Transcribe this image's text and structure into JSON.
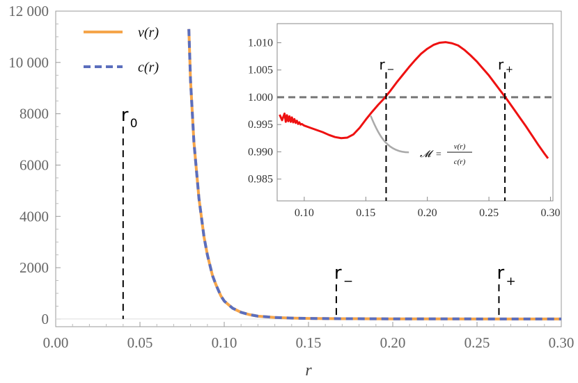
{
  "chart_data": [
    {
      "type": "line",
      "title": "",
      "xlabel": "r",
      "ylabel": "",
      "xlim": [
        0.0,
        0.3
      ],
      "ylim": [
        -300,
        12000
      ],
      "xticks": [
        "0.00",
        "0.05",
        "0.10",
        "0.15",
        "0.20",
        "0.25",
        "0.30"
      ],
      "yticks": [
        "0",
        "2000",
        "4000",
        "6000",
        "8000",
        "10 000",
        "12 000"
      ],
      "grid": false,
      "legend_position": "top-left",
      "series": [
        {
          "name": "v(r)",
          "color": "#f5a54a",
          "style": "solid",
          "x": [
            0.079,
            0.08,
            0.082,
            0.085,
            0.088,
            0.09,
            0.093,
            0.095,
            0.098,
            0.1,
            0.105,
            0.11,
            0.115,
            0.12,
            0.13,
            0.14,
            0.15,
            0.17,
            0.2,
            0.25,
            0.3
          ],
          "y": [
            11300,
            9300,
            6900,
            4700,
            3200,
            2500,
            1700,
            1350,
            900,
            700,
            420,
            260,
            170,
            110,
            60,
            35,
            22,
            12,
            6,
            3,
            2
          ]
        },
        {
          "name": "c(r)",
          "color": "#5b6ebd",
          "style": "dashed",
          "x": [
            0.079,
            0.08,
            0.082,
            0.085,
            0.088,
            0.09,
            0.093,
            0.095,
            0.098,
            0.1,
            0.105,
            0.11,
            0.115,
            0.12,
            0.13,
            0.14,
            0.15,
            0.17,
            0.2,
            0.25,
            0.3
          ],
          "y": [
            11300,
            9300,
            6900,
            4700,
            3200,
            2500,
            1700,
            1350,
            900,
            700,
            420,
            260,
            170,
            110,
            60,
            35,
            22,
            12,
            6,
            3,
            2
          ]
        }
      ],
      "markers": [
        {
          "label": "r",
          "sub": "0",
          "x": 0.04,
          "ytop": 7500
        },
        {
          "label": "r",
          "sub": "−",
          "x": 0.1665,
          "ytop": 1350
        },
        {
          "label": "r",
          "sub": "+",
          "x": 0.263,
          "ytop": 1350
        }
      ]
    },
    {
      "type": "line",
      "title": "",
      "xlabel": "",
      "ylabel": "",
      "xlim": [
        0.078,
        0.302
      ],
      "ylim": [
        0.981,
        1.0135
      ],
      "xticks": [
        "0.10",
        "0.15",
        "0.20",
        "0.25",
        "0.30"
      ],
      "yticks": [
        "0.985",
        "0.990",
        "0.995",
        "1.000",
        "1.005",
        "1.010"
      ],
      "reference_line": {
        "y": 1.0,
        "color": "#777777",
        "style": "dashed"
      },
      "series": [
        {
          "name": "",
          "color": "#ee1111",
          "style": "solid",
          "x": [
            0.08,
            0.082,
            0.084,
            0.085,
            0.086,
            0.087,
            0.088,
            0.089,
            0.09,
            0.091,
            0.092,
            0.093,
            0.094,
            0.095,
            0.096,
            0.097,
            0.098,
            0.1,
            0.105,
            0.11,
            0.115,
            0.12,
            0.125,
            0.13,
            0.135,
            0.14,
            0.145,
            0.15,
            0.155,
            0.16,
            0.165,
            0.17,
            0.175,
            0.18,
            0.185,
            0.19,
            0.195,
            0.2,
            0.205,
            0.21,
            0.215,
            0.22,
            0.225,
            0.23,
            0.235,
            0.24,
            0.245,
            0.25,
            0.255,
            0.26,
            0.265,
            0.27,
            0.275,
            0.28,
            0.285,
            0.29,
            0.295,
            0.298
          ],
          "y": [
            0.9968,
            0.9958,
            0.997,
            0.9955,
            0.9967,
            0.9956,
            0.9965,
            0.9955,
            0.9963,
            0.9954,
            0.996,
            0.9953,
            0.9957,
            0.9951,
            0.9954,
            0.995,
            0.9951,
            0.9948,
            0.9944,
            0.994,
            0.9936,
            0.9931,
            0.9927,
            0.9925,
            0.9926,
            0.9932,
            0.9944,
            0.9959,
            0.9973,
            0.9986,
            0.9998,
            1.0012,
            1.0027,
            1.0041,
            1.0055,
            1.0068,
            1.008,
            1.0089,
            1.0096,
            1.01,
            1.0101,
            1.0099,
            1.0095,
            1.0087,
            1.0077,
            1.0066,
            1.0053,
            1.004,
            1.0025,
            1.001,
            0.9995,
            0.9979,
            0.9963,
            0.9947,
            0.993,
            0.9913,
            0.9897,
            0.9888
          ]
        }
      ],
      "markers": [
        {
          "label": "r",
          "sub": "−",
          "x": 0.1665
        },
        {
          "label": "r",
          "sub": "+",
          "x": 0.263
        }
      ],
      "annotation": {
        "symbol": "𝓜",
        "eq": "=",
        "num": "v(r)",
        "den": "c(r)"
      }
    }
  ]
}
